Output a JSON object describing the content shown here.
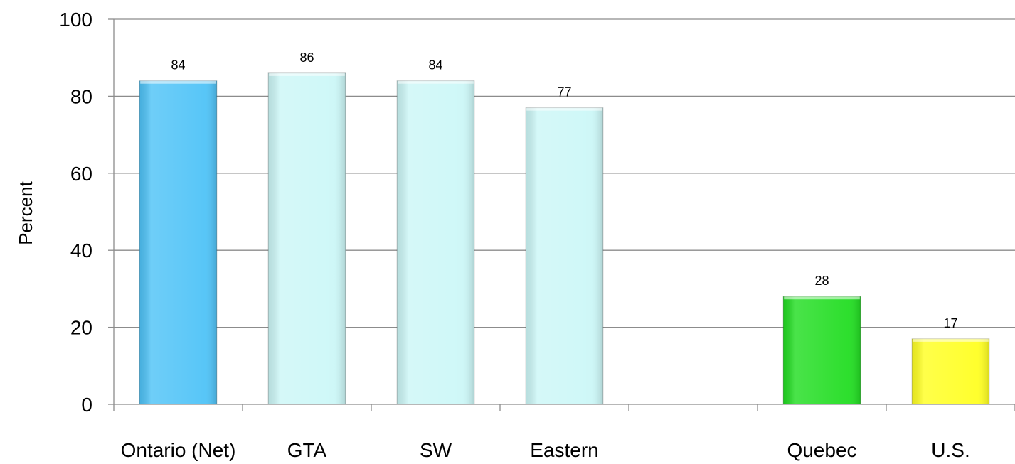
{
  "chart_data": {
    "type": "bar",
    "categories": [
      "Ontario (Net)",
      "GTA",
      "SW",
      "Eastern",
      "",
      "Quebec",
      "U.S."
    ],
    "values": [
      84,
      86,
      84,
      77,
      null,
      28,
      17
    ],
    "data_labels": [
      "84",
      "86",
      "84",
      "77",
      "",
      "28",
      "17"
    ],
    "bar_colors": [
      "#4fc3f7",
      "#ccf7f7",
      "#ccf7f7",
      "#ccf7f7",
      "",
      "#22dd22",
      "#ffff22"
    ],
    "title": "",
    "xlabel": "",
    "ylabel": "Percent",
    "ylim": [
      0,
      100
    ],
    "yticks": [
      0,
      20,
      40,
      60,
      80,
      100
    ],
    "ytick_labels": [
      "0",
      "20",
      "40",
      "60",
      "80",
      "100"
    ],
    "grid": true,
    "legend": "none"
  }
}
